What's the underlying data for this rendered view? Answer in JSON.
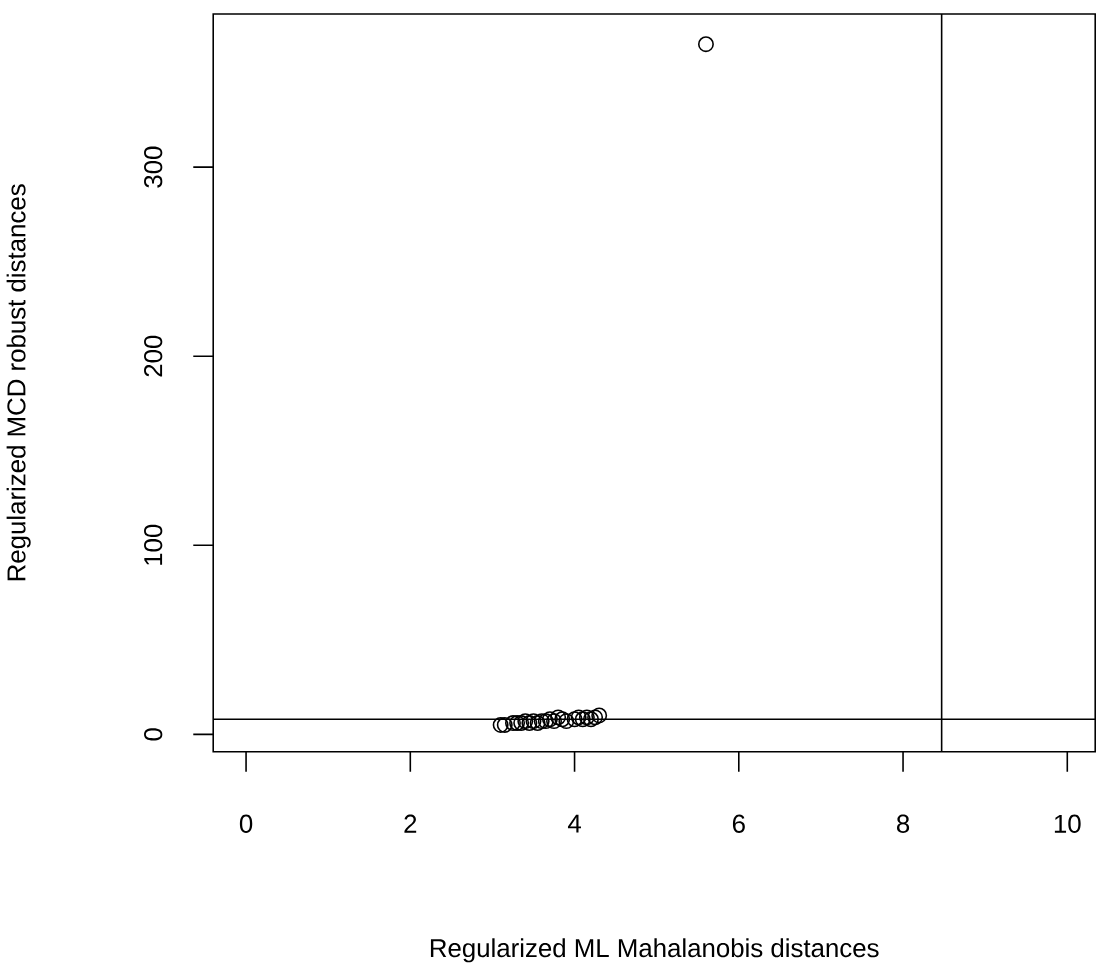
{
  "chart_data": {
    "type": "scatter",
    "xlabel": "Regularized ML Mahalanobis distances",
    "ylabel": "Regularized MCD robust distances",
    "x": [
      3.1,
      3.15,
      3.25,
      3.3,
      3.35,
      3.4,
      3.45,
      3.5,
      3.55,
      3.6,
      3.65,
      3.7,
      3.75,
      3.8,
      3.85,
      3.9,
      4.0,
      4.05,
      4.1,
      4.15,
      4.2,
      4.25,
      4.3,
      5.6
    ],
    "values": [
      5,
      5,
      6,
      6,
      6,
      7,
      6,
      7,
      6,
      7,
      7,
      8,
      7,
      9,
      8,
      7,
      8,
      9,
      8,
      9,
      8,
      9,
      10,
      365
    ],
    "color": "#000000",
    "marker": "circle",
    "xlim": [
      -0.4,
      10.34
    ],
    "ylim": [
      -9.2,
      381
    ],
    "xticks": [
      0,
      2,
      4,
      6,
      8,
      10
    ],
    "yticks": [
      0,
      100,
      200,
      300
    ],
    "grid": false,
    "ref_lines": [
      {
        "axis": "x",
        "value": 8.47,
        "color": "#000000"
      },
      {
        "axis": "y",
        "value": 8.0,
        "color": "#000000"
      }
    ]
  }
}
